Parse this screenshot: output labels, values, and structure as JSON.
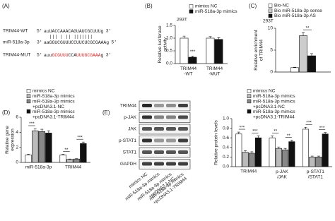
{
  "panel_labels": [
    "(A)",
    "(B)",
    "(C)",
    "(D)",
    "(E)"
  ],
  "sequence": {
    "rows": [
      {
        "name": "TRIM44-WT",
        "prime5": "5'",
        "prime3": "3'",
        "segments": [
          {
            "text": "auUACCAAACAGUAUCGCUUUg",
            "color": "#222222"
          }
        ]
      },
      {
        "name": "miR-518a-3p",
        "prime5": "3'",
        "prime3": "5'",
        "segments": [
          {
            "text": "aaGGUCGUUUCCUUCUCGCGAAAg",
            "color": "#222222"
          }
        ]
      },
      {
        "name": "TRIM44-MUT",
        "prime5": "5'",
        "prime3": "3'",
        "segments": [
          {
            "text": "auu",
            "color": "#222222"
          },
          {
            "text": "GCGUUU",
            "color": "#e02020"
          },
          {
            "text": "CCA",
            "color": "#222222"
          },
          {
            "text": "UUU",
            "color": "#e02020"
          },
          {
            "text": "GCGAAA",
            "color": "#e02020"
          },
          {
            "text": "g",
            "color": "#222222"
          }
        ]
      }
    ],
    "pairing": "|||  |  ||  |||||||"
  },
  "blot": {
    "proteins": [
      "TRIM44",
      "p-JAK",
      "JAK",
      "p-STAT1",
      "STAT1",
      "GAPDH"
    ],
    "lanes": [
      "mimics NC",
      "miR-518a-3p mimics",
      "miR-518a-3p mimics\n+pcDNA3.1-NC",
      "miR-518a-3p mimics\n+pcDNA3.1-TRIM44"
    ]
  },
  "chart_data": [
    {
      "type": "bar",
      "title": "293T",
      "ylabel": "Relative luciferase\nactivity",
      "categories": [
        "TRIM44\n-WT",
        "TRIM44\n-MUT"
      ],
      "series": [
        {
          "name": "mimics NC",
          "color": "#ffffff",
          "values": [
            1.0,
            1.0
          ],
          "errors": [
            0.08,
            0.06
          ]
        },
        {
          "name": "miR-518a-3p mimics",
          "color": "#111111",
          "values": [
            0.25,
            0.95
          ],
          "errors": [
            0.04,
            0.07
          ]
        }
      ],
      "ylim": [
        0,
        1.5
      ],
      "yticks": [
        {
          "value": 0,
          "label": "0.0"
        },
        0.5,
        {
          "value": 1,
          "label": "1.0"
        },
        1.5
      ],
      "annotations": [
        "***"
      ]
    },
    {
      "type": "bar",
      "title": "293T",
      "ylabel": "Relative enrichment\nof TRIM44",
      "categories": [
        null
      ],
      "series": [
        {
          "name": "Bio-NC",
          "color": "#ffffff",
          "values": [
            1.0
          ],
          "errors": [
            0.1
          ]
        },
        {
          "name": "Bio miR-518a-3p sense",
          "color": "#cccccc",
          "values": [
            8.3
          ],
          "errors": [
            0.7
          ]
        },
        {
          "name": "Bio miR-518a-3p AS",
          "color": "#111111",
          "values": [
            3.7
          ],
          "errors": [
            0.5
          ]
        }
      ],
      "ylim": [
        0,
        10
      ],
      "yticks": [
        0,
        5,
        10
      ],
      "annotations": [
        "**"
      ]
    },
    {
      "type": "bar",
      "ylabel": "Relative gene\nexpression",
      "categories": [
        "miR-518a-3p",
        "TRIM44"
      ],
      "series": [
        {
          "name": "mimics NC",
          "color": "#ffffff",
          "values": [
            1.0,
            1.0
          ],
          "errors": [
            0.08,
            0.07
          ]
        },
        {
          "name": "miR-518a-3p mimics",
          "color": "#bbbbbb",
          "values": [
            4.2,
            0.4
          ],
          "errors": [
            0.3,
            0.05
          ]
        },
        {
          "name": "miR-518a-3p mimics\n+pcDNA3.1-NC",
          "color": "#888888",
          "values": [
            4.1,
            0.45
          ],
          "errors": [
            0.3,
            0.05
          ]
        },
        {
          "name": "miR-518a-3p mimics\n+pcDNA3.1-TRIM44",
          "color": "#111111",
          "values": [
            3.9,
            2.5
          ],
          "errors": [
            0.3,
            0.2
          ]
        }
      ],
      "ylim": [
        0,
        6
      ],
      "yticks": [
        0,
        2,
        4,
        6
      ],
      "annotations": [
        "***",
        "**",
        "***"
      ]
    },
    {
      "type": "bar",
      "ylabel": "Relative protein levels",
      "categories": [
        "TRIM44",
        "p-JAK\n/JAK",
        "p-STAT1\n/STAT1"
      ],
      "series": [
        {
          "name": "mimics NC",
          "color": "#ffffff",
          "values": [
            0.68,
            0.6,
            0.78
          ],
          "errors": [
            0.04,
            0.04,
            0.04
          ]
        },
        {
          "name": "miR-518a-3p mimics",
          "color": "#bbbbbb",
          "values": [
            0.3,
            0.38,
            0.2
          ],
          "errors": [
            0.03,
            0.03,
            0.02
          ]
        },
        {
          "name": "miR-518a-3p mimics\n+pcDNA3.1-NC",
          "color": "#888888",
          "values": [
            0.28,
            0.35,
            0.2
          ],
          "errors": [
            0.03,
            0.03,
            0.02
          ]
        },
        {
          "name": "miR-518a-3p mimics\n+pcDNA3.1-TRIM44",
          "color": "#111111",
          "values": [
            0.6,
            0.52,
            0.68
          ],
          "errors": [
            0.04,
            0.03,
            0.03
          ]
        }
      ],
      "ylim": [
        0,
        1
      ],
      "yticks": [
        {
          "value": 0,
          "label": "0.0"
        },
        0.2,
        0.4,
        0.6,
        0.8,
        {
          "value": 1,
          "label": "1.0"
        }
      ],
      "annotations": [
        "***",
        "***",
        "**",
        "**",
        "***",
        "***"
      ]
    }
  ]
}
